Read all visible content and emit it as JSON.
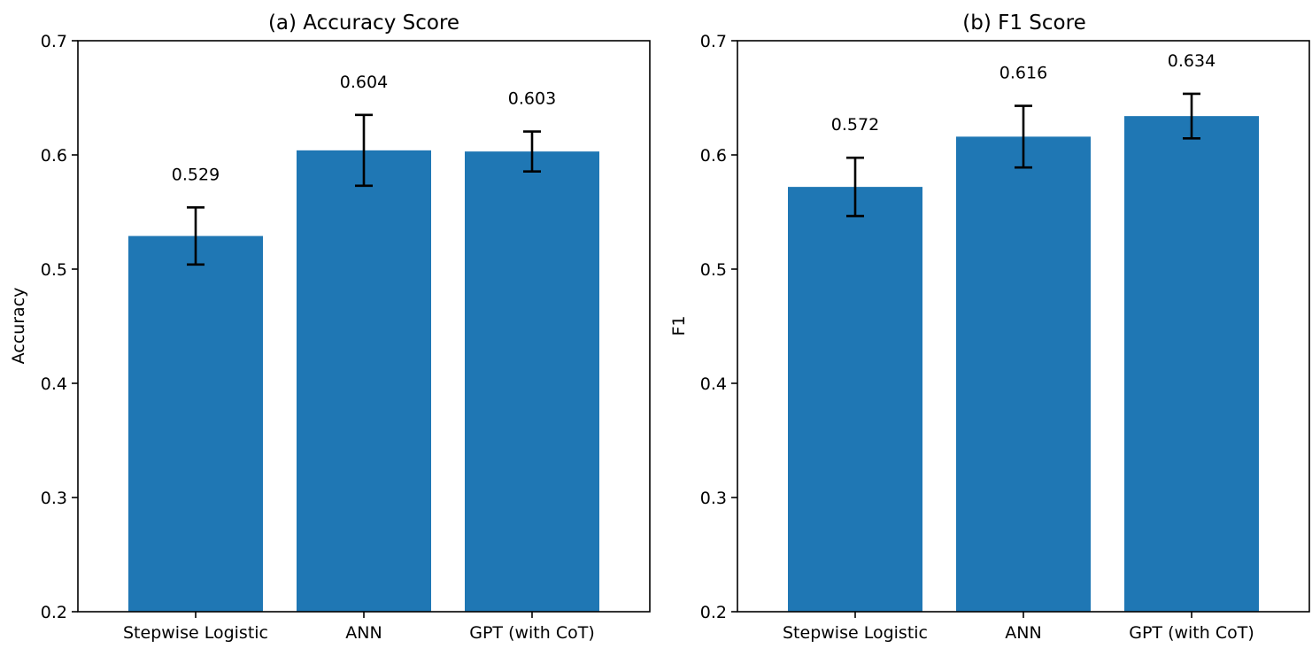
{
  "chart_data": [
    {
      "type": "bar",
      "title": "(a) Accuracy Score",
      "xlabel": "",
      "ylabel": "Accuracy",
      "categories": [
        "Stepwise Logistic",
        "ANN",
        "GPT (with CoT)"
      ],
      "values": [
        0.529,
        0.604,
        0.603
      ],
      "error": [
        0.025,
        0.031,
        0.0175
      ],
      "data_labels": [
        "0.529",
        "0.604",
        "0.603"
      ],
      "ylim": [
        0.2,
        0.7
      ],
      "yticks": [
        0.2,
        0.3,
        0.4,
        0.5,
        0.6,
        0.7
      ],
      "ytick_labels": [
        "0.2",
        "0.3",
        "0.4",
        "0.5",
        "0.6",
        "0.7"
      ],
      "bar_color": "#1f77b4",
      "grid": false,
      "legend": null
    },
    {
      "type": "bar",
      "title": "(b) F1 Score",
      "xlabel": "",
      "ylabel": "F1",
      "categories": [
        "Stepwise Logistic",
        "ANN",
        "GPT (with CoT)"
      ],
      "values": [
        0.572,
        0.616,
        0.634
      ],
      "error": [
        0.0255,
        0.027,
        0.0195
      ],
      "data_labels": [
        "0.572",
        "0.616",
        "0.634"
      ],
      "ylim": [
        0.2,
        0.7
      ],
      "yticks": [
        0.2,
        0.3,
        0.4,
        0.5,
        0.6,
        0.7
      ],
      "ytick_labels": [
        "0.2",
        "0.3",
        "0.4",
        "0.5",
        "0.6",
        "0.7"
      ],
      "bar_color": "#1f77b4",
      "grid": false,
      "legend": null
    }
  ]
}
